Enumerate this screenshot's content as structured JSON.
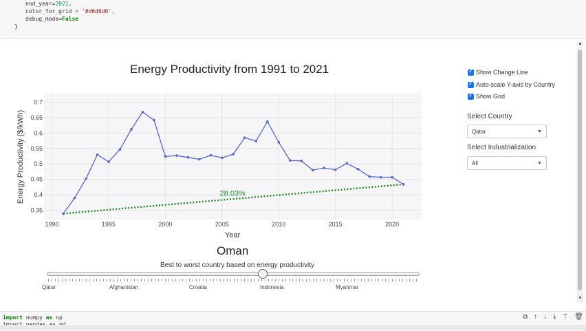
{
  "code_top": {
    "line1": {
      "name": "end_year",
      "value": "2021"
    },
    "line2": {
      "name": "color_for_grid",
      "value": "'#d6d6d6'"
    },
    "line3": {
      "name": "debug_mode",
      "value": "False"
    },
    "line4": "}"
  },
  "controls": {
    "show_change_line": "Show Change Line",
    "auto_scale": "Auto-scale Y-axis by Country",
    "show_grid": "Show Grid",
    "select_country_label": "Select Country",
    "country_value": "Qatar",
    "select_industrialization_label": "Select Industrialization",
    "industrialization_value": "All"
  },
  "chart_data": {
    "type": "line",
    "title": "Energy Productivity from 1991 to 2021",
    "xlabel": "Year",
    "ylabel": "Energy Productivity ($/kWh)",
    "xlim": [
      1989.3,
      1992.6
    ],
    "ylim": [
      0.32,
      0.73
    ],
    "x_ticks": [
      "1990",
      "1995",
      "2000",
      "2005",
      "2010",
      "2015",
      "2020"
    ],
    "y_ticks": [
      "0.35",
      "0.4",
      "0.45",
      "0.5",
      "0.55",
      "0.6",
      "0.65",
      "0.7"
    ],
    "grid": true,
    "x": [
      1991,
      1992,
      1993,
      1994,
      1995,
      1996,
      1997,
      1998,
      1999,
      2000,
      2001,
      2002,
      2003,
      2004,
      2005,
      2006,
      2007,
      2008,
      2009,
      2010,
      2011,
      2012,
      2013,
      2014,
      2015,
      2016,
      2017,
      2018,
      2019,
      2020,
      2021
    ],
    "series": [
      {
        "values": [
          0.339,
          0.39,
          0.452,
          0.53,
          0.507,
          0.547,
          0.612,
          0.668,
          0.642,
          0.524,
          0.527,
          0.521,
          0.515,
          0.528,
          0.52,
          0.532,
          0.585,
          0.574,
          0.637,
          0.57,
          0.511,
          0.51,
          0.48,
          0.487,
          0.481,
          0.502,
          0.483,
          0.459,
          0.457,
          0.457,
          0.434
        ],
        "color": "#5566cc"
      }
    ],
    "change_line": {
      "from": [
        1991,
        0.339
      ],
      "to": [
        2021,
        0.434
      ],
      "color": "#1a8a1a",
      "label": "28.03%"
    }
  },
  "slider": {
    "title": "Oman",
    "subtitle": "Best to worst country based on energy productivity",
    "labels": [
      "Qatar",
      "Afghanistan",
      "Croatia",
      "Indonesia",
      "Myanmar"
    ],
    "position_fraction": 0.58
  },
  "code_bottom": {
    "line1": {
      "kw1": "import",
      "mod": "numpy",
      "kw2": "as",
      "alias": "np"
    },
    "line2": "import pandas as pd"
  },
  "icons": [
    "copy-icon",
    "move-up-icon",
    "move-down-icon",
    "insert-below-icon",
    "insert-above-icon",
    "delete-icon"
  ]
}
